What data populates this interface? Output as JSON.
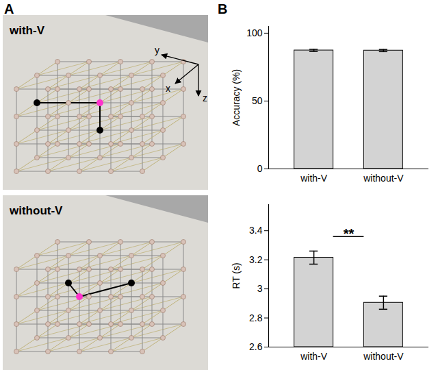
{
  "panel_labels": [
    "A",
    "B"
  ],
  "diagram": {
    "panels": [
      {
        "label": "with-V",
        "axes": [
          "x",
          "y",
          "z"
        ]
      },
      {
        "label": "without-V"
      }
    ]
  },
  "chart_data": [
    {
      "type": "bar",
      "categories": [
        "with-V",
        "without-V"
      ],
      "values": [
        87.3,
        87.2
      ],
      "errors": [
        0.8,
        0.8
      ],
      "y_label": "Accuracy (%)",
      "ylim": [
        0,
        105
      ],
      "yticks": [
        0,
        50,
        100
      ],
      "color": "#d3d3d3"
    },
    {
      "type": "bar",
      "categories": [
        "with-V",
        "without-V"
      ],
      "values": [
        3.215,
        2.905
      ],
      "errors": [
        0.045,
        0.045
      ],
      "y_label": "RT (s)",
      "ylim": [
        2.6,
        3.58
      ],
      "yticks": [
        2.6,
        2.8,
        3,
        3.2,
        3.4
      ],
      "color": "#d3d3d3",
      "annotations": [
        {
          "text": "**",
          "from": "with-V",
          "to": "without-V",
          "y": 3.36
        }
      ]
    }
  ]
}
